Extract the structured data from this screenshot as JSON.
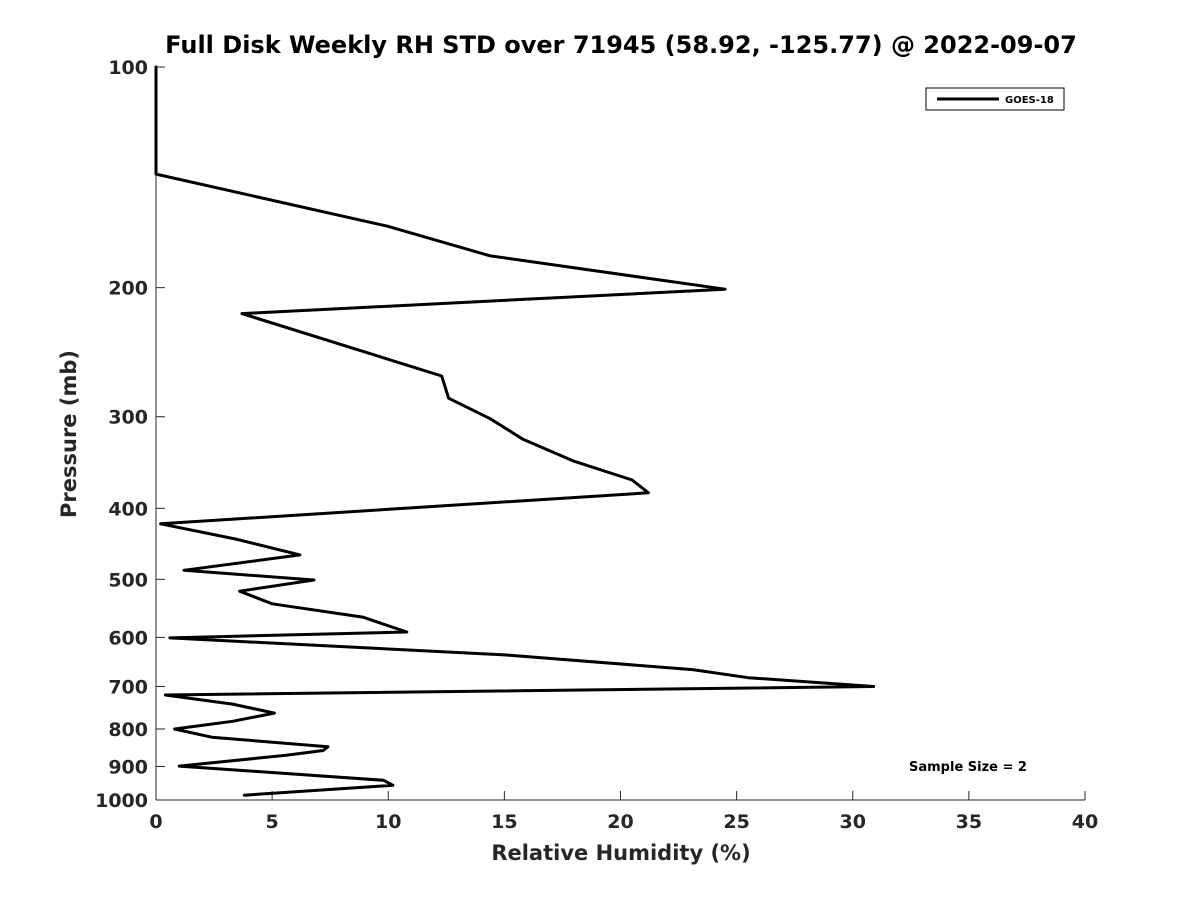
{
  "chart_data": {
    "type": "line",
    "title": "Full Disk Weekly RH STD over 71945 (58.92, -125.77) @ 2022-09-07",
    "xlabel": "Relative Humidity (%)",
    "ylabel": "Pressure (mb)",
    "xlim": [
      0,
      40
    ],
    "ylim": [
      100,
      1000
    ],
    "yscale": "log",
    "y_reversed": true,
    "xticks": [
      0,
      5,
      10,
      15,
      20,
      25,
      30,
      35,
      40
    ],
    "yticks": [
      100,
      200,
      300,
      400,
      500,
      600,
      700,
      800,
      900,
      1000
    ],
    "grid": false,
    "legend": {
      "position": "top-right",
      "entries": [
        "GOES-18"
      ]
    },
    "annotations": [
      {
        "text": "Sample Size = 2",
        "position": "bottom-right"
      }
    ],
    "series": [
      {
        "name": "GOES-18",
        "color": "#000000",
        "points": [
          [
            0.0,
            100
          ],
          [
            0.0,
            110
          ],
          [
            0.0,
            120
          ],
          [
            0.0,
            130
          ],
          [
            0.0,
            140
          ],
          [
            10.0,
            165
          ],
          [
            14.4,
            181
          ],
          [
            24.5,
            201
          ],
          [
            3.7,
            217
          ],
          [
            12.3,
            264
          ],
          [
            12.6,
            283
          ],
          [
            14.4,
            302
          ],
          [
            15.8,
            322
          ],
          [
            18.0,
            345
          ],
          [
            20.5,
            366
          ],
          [
            21.2,
            381
          ],
          [
            0.2,
            420
          ],
          [
            3.5,
            441
          ],
          [
            6.2,
            463
          ],
          [
            1.2,
            486
          ],
          [
            6.8,
            501
          ],
          [
            3.6,
            519
          ],
          [
            5.0,
            540
          ],
          [
            8.9,
            563
          ],
          [
            10.8,
            590
          ],
          [
            0.6,
            601
          ],
          [
            15.0,
            634
          ],
          [
            23.1,
            664
          ],
          [
            25.5,
            681
          ],
          [
            30.9,
            700
          ],
          [
            0.4,
            719
          ],
          [
            3.3,
            740
          ],
          [
            5.1,
            761
          ],
          [
            3.3,
            781
          ],
          [
            0.8,
            800
          ],
          [
            2.4,
            821
          ],
          [
            7.4,
            846
          ],
          [
            7.2,
            856
          ],
          [
            5.6,
            869
          ],
          [
            1.0,
            899
          ],
          [
            9.8,
            940
          ],
          [
            10.2,
            955
          ],
          [
            3.8,
            985
          ]
        ]
      }
    ]
  }
}
